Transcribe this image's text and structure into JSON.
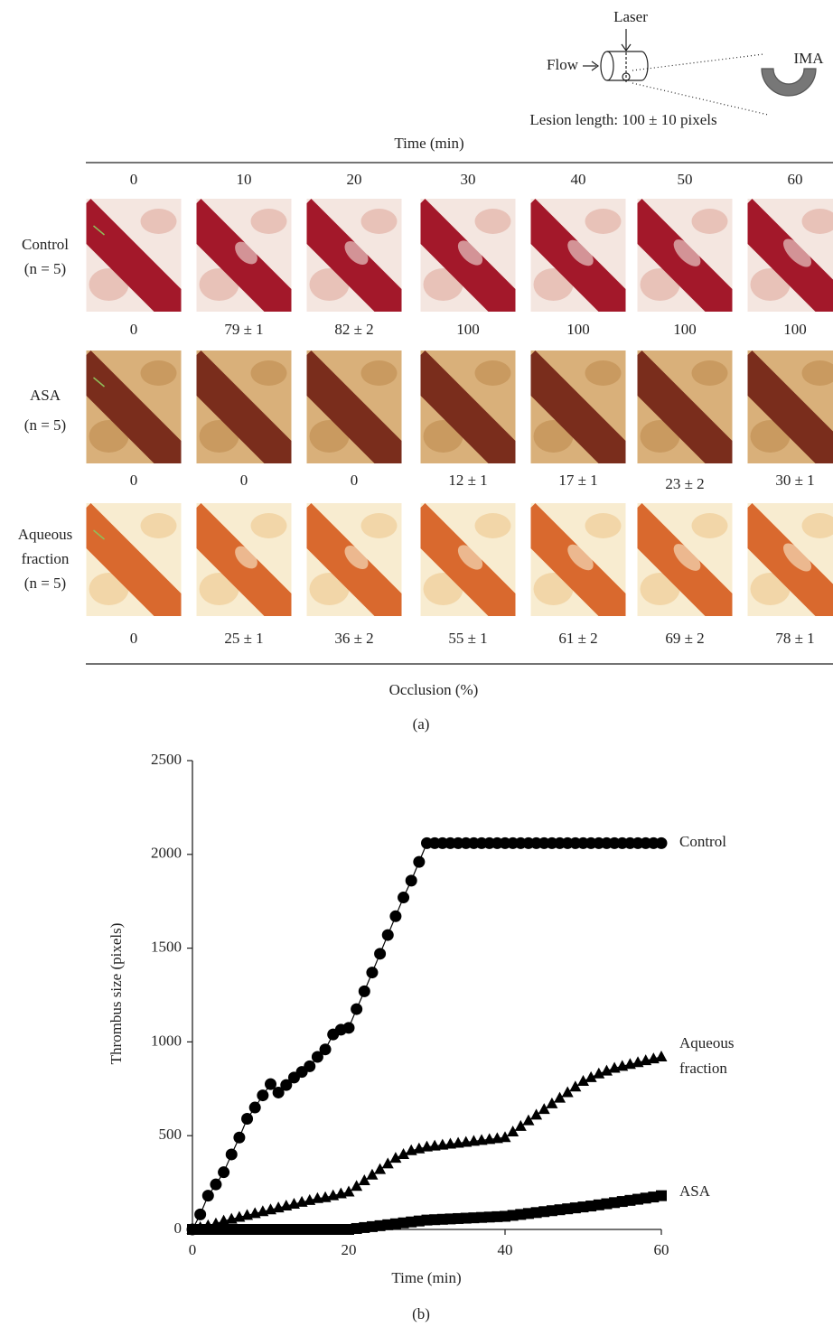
{
  "schematic": {
    "laser": "Laser",
    "flow": "Flow",
    "vessel": "IMA",
    "lesion": "Lesion length: 100 ± 10 pixels"
  },
  "panel_a": {
    "header": "Time (min)",
    "times": [
      0,
      10,
      20,
      30,
      40,
      50,
      60
    ],
    "rows": [
      {
        "label": "Control",
        "n": "(n = 5)",
        "occlusion": [
          "0",
          "79 ± 1",
          "82 ± 2",
          "100",
          "100",
          "100",
          "100"
        ]
      },
      {
        "label": "ASA",
        "n": "(n = 5)",
        "occlusion": [
          "0",
          "0",
          "0",
          "12 ± 1",
          "17 ± 1",
          "23 ± 2",
          "30 ± 1"
        ]
      },
      {
        "label": "Aqueous fraction",
        "n": "(n = 5)",
        "occlusion": [
          "0",
          "25 ± 1",
          "36 ± 2",
          "55 ± 1",
          "61 ± 2",
          "69 ± 2",
          "78 ± 1"
        ]
      }
    ],
    "footer": "Occlusion (%)",
    "caption": "(a)"
  },
  "chart_data": {
    "type": "line",
    "x_label": "Time (min)",
    "y_label": "Thrombus size (pixels)",
    "caption": "(b)",
    "x": [
      0,
      1,
      2,
      3,
      4,
      5,
      6,
      7,
      8,
      9,
      10,
      11,
      12,
      13,
      14,
      15,
      16,
      17,
      18,
      19,
      20,
      21,
      22,
      23,
      24,
      25,
      26,
      27,
      28,
      29,
      30,
      31,
      32,
      33,
      34,
      35,
      36,
      37,
      38,
      39,
      40,
      41,
      42,
      43,
      44,
      45,
      46,
      47,
      48,
      49,
      50,
      51,
      52,
      53,
      54,
      55,
      56,
      57,
      58,
      59,
      60
    ],
    "series": [
      {
        "name": "Control",
        "color": "#000000",
        "marker": "circle",
        "values": [
          0,
          80,
          180,
          240,
          305,
          400,
          490,
          590,
          650,
          715,
          775,
          730,
          770,
          810,
          840,
          870,
          920,
          960,
          1040,
          1065,
          1075,
          1175,
          1270,
          1370,
          1470,
          1570,
          1670,
          1770,
          1860,
          1960,
          2060,
          2060,
          2060,
          2060,
          2060,
          2060,
          2060,
          2060,
          2060,
          2060,
          2060,
          2060,
          2060,
          2060,
          2060,
          2060,
          2060,
          2060,
          2060,
          2060,
          2060,
          2060,
          2060,
          2060,
          2060,
          2060,
          2060,
          2060,
          2060,
          2060,
          2060
        ]
      },
      {
        "name": "Aqueous fraction",
        "color": "#000000",
        "marker": "triangle",
        "values": [
          0,
          10,
          20,
          30,
          45,
          55,
          65,
          75,
          85,
          95,
          105,
          115,
          125,
          135,
          145,
          155,
          165,
          170,
          180,
          190,
          200,
          230,
          260,
          290,
          320,
          350,
          380,
          400,
          420,
          430,
          440,
          445,
          450,
          455,
          460,
          465,
          470,
          475,
          480,
          485,
          490,
          520,
          550,
          580,
          610,
          640,
          670,
          700,
          730,
          760,
          790,
          810,
          830,
          845,
          860,
          870,
          880,
          890,
          900,
          910,
          920
        ]
      },
      {
        "name": "ASA",
        "color": "#000000",
        "marker": "square",
        "values": [
          0,
          0,
          0,
          0,
          0,
          0,
          0,
          0,
          0,
          0,
          0,
          0,
          0,
          0,
          0,
          0,
          0,
          0,
          0,
          0,
          0,
          5,
          10,
          15,
          20,
          25,
          30,
          35,
          40,
          45,
          50,
          52,
          54,
          56,
          58,
          60,
          62,
          64,
          66,
          68,
          70,
          75,
          80,
          85,
          90,
          95,
          100,
          105,
          110,
          115,
          120,
          125,
          131,
          137,
          143,
          149,
          155,
          161,
          167,
          173,
          180
        ]
      }
    ],
    "xlim": [
      0,
      60
    ],
    "ylim": [
      0,
      2500
    ],
    "xticks": [
      0,
      20,
      40,
      60
    ],
    "yticks": [
      0,
      500,
      1000,
      1500,
      2000,
      2500
    ]
  }
}
